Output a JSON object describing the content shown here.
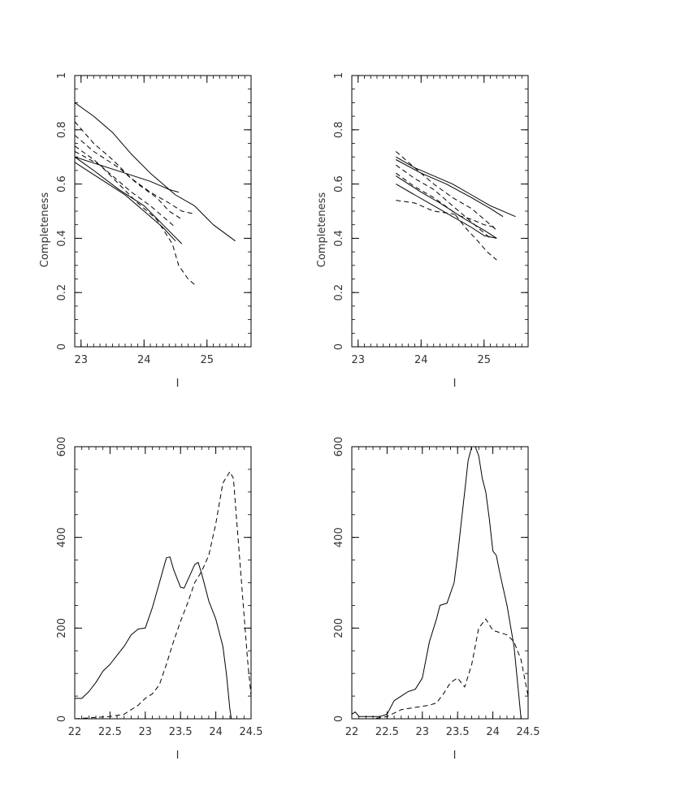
{
  "chart_data": [
    {
      "type": "line",
      "xlabel": "I",
      "ylabel": "Completeness",
      "xlim": [
        22.9,
        25.7
      ],
      "ylim": [
        0,
        1
      ],
      "xticks": [
        "23",
        "24",
        "25"
      ],
      "yticks": [
        "0",
        "0.2",
        "0.4",
        "0.6",
        "0.8",
        "1"
      ],
      "series": [
        {
          "style": "solid",
          "points": [
            [
              22.9,
              0.9
            ],
            [
              23.2,
              0.85
            ],
            [
              23.5,
              0.79
            ],
            [
              23.8,
              0.71
            ],
            [
              24.1,
              0.64
            ],
            [
              24.3,
              0.6
            ],
            [
              24.5,
              0.56
            ],
            [
              24.8,
              0.52
            ],
            [
              25.1,
              0.45
            ],
            [
              25.45,
              0.39
            ]
          ]
        },
        {
          "style": "solid",
          "points": [
            [
              22.9,
              0.7
            ],
            [
              23.3,
              0.67
            ],
            [
              23.7,
              0.64
            ],
            [
              24.1,
              0.61
            ],
            [
              24.4,
              0.58
            ],
            [
              24.55,
              0.57
            ]
          ]
        },
        {
          "style": "solid",
          "points": [
            [
              22.9,
              0.7
            ],
            [
              23.2,
              0.65
            ],
            [
              23.6,
              0.58
            ],
            [
              24.0,
              0.52
            ],
            [
              24.3,
              0.45
            ],
            [
              24.6,
              0.38
            ]
          ]
        },
        {
          "style": "solid",
          "points": [
            [
              22.9,
              0.68
            ],
            [
              23.3,
              0.62
            ],
            [
              23.7,
              0.56
            ],
            [
              24.0,
              0.5
            ],
            [
              24.3,
              0.44
            ],
            [
              24.5,
              0.39
            ]
          ]
        },
        {
          "style": "dashed",
          "points": [
            [
              22.9,
              0.83
            ],
            [
              23.2,
              0.75
            ],
            [
              23.5,
              0.69
            ],
            [
              23.8,
              0.62
            ],
            [
              24.1,
              0.57
            ],
            [
              24.4,
              0.53
            ],
            [
              24.6,
              0.5
            ],
            [
              24.8,
              0.49
            ]
          ]
        },
        {
          "style": "dashed",
          "points": [
            [
              22.9,
              0.78
            ],
            [
              23.2,
              0.72
            ],
            [
              23.6,
              0.66
            ],
            [
              23.9,
              0.6
            ],
            [
              24.2,
              0.55
            ],
            [
              24.4,
              0.5
            ],
            [
              24.6,
              0.47
            ]
          ]
        },
        {
          "style": "dashed",
          "points": [
            [
              22.9,
              0.74
            ],
            [
              23.2,
              0.69
            ],
            [
              23.5,
              0.63
            ],
            [
              23.8,
              0.57
            ],
            [
              24.1,
              0.52
            ],
            [
              24.35,
              0.47
            ],
            [
              24.5,
              0.44
            ]
          ]
        },
        {
          "style": "dashed",
          "points": [
            [
              22.9,
              0.72
            ],
            [
              23.3,
              0.67
            ],
            [
              23.6,
              0.6
            ],
            [
              23.9,
              0.53
            ],
            [
              24.2,
              0.47
            ],
            [
              24.45,
              0.38
            ],
            [
              24.55,
              0.3
            ],
            [
              24.7,
              0.25
            ],
            [
              24.8,
              0.23
            ]
          ]
        }
      ]
    },
    {
      "type": "line",
      "xlabel": "I",
      "ylabel": "Completeness",
      "xlim": [
        22.9,
        25.7
      ],
      "ylim": [
        0,
        1
      ],
      "xticks": [
        "23",
        "24",
        "25"
      ],
      "yticks": [
        "0",
        "0.2",
        "0.4",
        "0.6",
        "0.8",
        "1"
      ],
      "series": [
        {
          "style": "solid",
          "points": [
            [
              23.6,
              0.7
            ],
            [
              23.9,
              0.66
            ],
            [
              24.2,
              0.63
            ],
            [
              24.5,
              0.6
            ],
            [
              24.8,
              0.56
            ],
            [
              25.1,
              0.52
            ],
            [
              25.5,
              0.48
            ]
          ]
        },
        {
          "style": "solid",
          "points": [
            [
              23.6,
              0.69
            ],
            [
              24.0,
              0.64
            ],
            [
              24.4,
              0.6
            ],
            [
              24.8,
              0.55
            ],
            [
              25.1,
              0.51
            ],
            [
              25.3,
              0.48
            ]
          ]
        },
        {
          "style": "solid",
          "points": [
            [
              23.6,
              0.63
            ],
            [
              24.0,
              0.57
            ],
            [
              24.3,
              0.53
            ],
            [
              24.7,
              0.47
            ],
            [
              25.0,
              0.43
            ],
            [
              25.2,
              0.4
            ]
          ]
        },
        {
          "style": "solid",
          "points": [
            [
              23.6,
              0.6
            ],
            [
              23.9,
              0.56
            ],
            [
              24.2,
              0.52
            ],
            [
              24.5,
              0.48
            ],
            [
              24.8,
              0.44
            ],
            [
              25.0,
              0.41
            ],
            [
              25.2,
              0.4
            ]
          ]
        },
        {
          "style": "dashed",
          "points": [
            [
              23.6,
              0.72
            ],
            [
              23.9,
              0.66
            ],
            [
              24.2,
              0.6
            ],
            [
              24.5,
              0.55
            ],
            [
              24.8,
              0.51
            ],
            [
              25.0,
              0.47
            ],
            [
              25.2,
              0.43
            ]
          ]
        },
        {
          "style": "dashed",
          "points": [
            [
              23.6,
              0.67
            ],
            [
              23.9,
              0.62
            ],
            [
              24.2,
              0.58
            ],
            [
              24.5,
              0.52
            ],
            [
              24.7,
              0.48
            ],
            [
              24.9,
              0.44
            ],
            [
              25.1,
              0.4
            ]
          ]
        },
        {
          "style": "dashed",
          "points": [
            [
              23.6,
              0.64
            ],
            [
              23.9,
              0.59
            ],
            [
              24.2,
              0.55
            ],
            [
              24.5,
              0.5
            ],
            [
              24.7,
              0.44
            ],
            [
              24.9,
              0.39
            ],
            [
              25.05,
              0.35
            ],
            [
              25.2,
              0.32
            ]
          ]
        },
        {
          "style": "dashed",
          "points": [
            [
              23.6,
              0.54
            ],
            [
              23.9,
              0.53
            ],
            [
              24.2,
              0.5
            ],
            [
              24.5,
              0.49
            ],
            [
              24.8,
              0.47
            ],
            [
              25.0,
              0.45
            ],
            [
              25.2,
              0.44
            ]
          ]
        }
      ]
    },
    {
      "type": "line",
      "xlabel": "I",
      "ylabel": "",
      "xlim": [
        22,
        24.5
      ],
      "ylim": [
        0,
        600
      ],
      "xticks": [
        "22",
        "22.5",
        "23",
        "23.5",
        "24",
        "24.5"
      ],
      "yticks": [
        "0",
        "200",
        "400",
        "600"
      ],
      "series": [
        {
          "style": "solid",
          "points": [
            [
              22.0,
              45
            ],
            [
              22.1,
              45
            ],
            [
              22.2,
              60
            ],
            [
              22.3,
              80
            ],
            [
              22.4,
              105
            ],
            [
              22.5,
              120
            ],
            [
              22.6,
              140
            ],
            [
              22.7,
              160
            ],
            [
              22.8,
              185
            ],
            [
              22.9,
              198
            ],
            [
              23.0,
              200
            ],
            [
              23.1,
              245
            ],
            [
              23.2,
              300
            ],
            [
              23.3,
              355
            ],
            [
              23.35,
              357
            ],
            [
              23.4,
              330
            ],
            [
              23.5,
              290
            ],
            [
              23.55,
              288
            ],
            [
              23.6,
              305
            ],
            [
              23.7,
              340
            ],
            [
              23.75,
              345
            ],
            [
              23.8,
              320
            ],
            [
              23.85,
              290
            ],
            [
              23.9,
              260
            ],
            [
              24.0,
              220
            ],
            [
              24.1,
              160
            ],
            [
              24.15,
              100
            ],
            [
              24.2,
              20
            ],
            [
              24.22,
              0
            ]
          ]
        },
        {
          "style": "dashed",
          "points": [
            [
              22.0,
              0
            ],
            [
              22.5,
              5
            ],
            [
              22.7,
              10
            ],
            [
              22.9,
              30
            ],
            [
              23.0,
              45
            ],
            [
              23.1,
              55
            ],
            [
              23.2,
              75
            ],
            [
              23.3,
              120
            ],
            [
              23.4,
              170
            ],
            [
              23.5,
              215
            ],
            [
              23.6,
              255
            ],
            [
              23.7,
              300
            ],
            [
              23.8,
              325
            ],
            [
              23.9,
              360
            ],
            [
              24.0,
              430
            ],
            [
              24.1,
              520
            ],
            [
              24.2,
              545
            ],
            [
              24.25,
              530
            ],
            [
              24.3,
              430
            ],
            [
              24.35,
              330
            ],
            [
              24.4,
              230
            ],
            [
              24.45,
              130
            ],
            [
              24.5,
              50
            ]
          ]
        }
      ]
    },
    {
      "type": "line",
      "xlabel": "I",
      "ylabel": "",
      "xlim": [
        22,
        24.5
      ],
      "ylim": [
        0,
        600
      ],
      "xticks": [
        "22",
        "22.5",
        "23",
        "23.5",
        "24",
        "24.5"
      ],
      "yticks": [
        "0",
        "200",
        "400",
        "600"
      ],
      "series": [
        {
          "style": "solid",
          "points": [
            [
              22.0,
              10
            ],
            [
              22.05,
              15
            ],
            [
              22.1,
              5
            ],
            [
              22.2,
              5
            ],
            [
              22.3,
              5
            ],
            [
              22.4,
              5
            ],
            [
              22.5,
              10
            ],
            [
              22.6,
              40
            ],
            [
              22.7,
              50
            ],
            [
              22.8,
              60
            ],
            [
              22.9,
              65
            ],
            [
              23.0,
              90
            ],
            [
              23.1,
              170
            ],
            [
              23.2,
              220
            ],
            [
              23.25,
              250
            ],
            [
              23.35,
              255
            ],
            [
              23.45,
              300
            ],
            [
              23.5,
              360
            ],
            [
              23.55,
              430
            ],
            [
              23.6,
              500
            ],
            [
              23.65,
              570
            ],
            [
              23.7,
              600
            ],
            [
              23.75,
              600
            ],
            [
              23.8,
              580
            ],
            [
              23.85,
              530
            ],
            [
              23.9,
              500
            ],
            [
              23.95,
              440
            ],
            [
              24.0,
              370
            ],
            [
              24.05,
              360
            ],
            [
              24.1,
              320
            ],
            [
              24.2,
              250
            ],
            [
              24.3,
              160
            ],
            [
              24.35,
              80
            ],
            [
              24.4,
              0
            ]
          ]
        },
        {
          "style": "dashed",
          "points": [
            [
              22.0,
              0
            ],
            [
              22.3,
              0
            ],
            [
              22.5,
              5
            ],
            [
              22.7,
              20
            ],
            [
              22.9,
              25
            ],
            [
              23.1,
              30
            ],
            [
              23.2,
              35
            ],
            [
              23.3,
              55
            ],
            [
              23.4,
              80
            ],
            [
              23.5,
              90
            ],
            [
              23.6,
              70
            ],
            [
              23.7,
              120
            ],
            [
              23.8,
              200
            ],
            [
              23.9,
              220
            ],
            [
              24.0,
              195
            ],
            [
              24.1,
              190
            ],
            [
              24.2,
              185
            ],
            [
              24.3,
              170
            ],
            [
              24.4,
              130
            ],
            [
              24.5,
              50
            ]
          ]
        }
      ]
    }
  ]
}
